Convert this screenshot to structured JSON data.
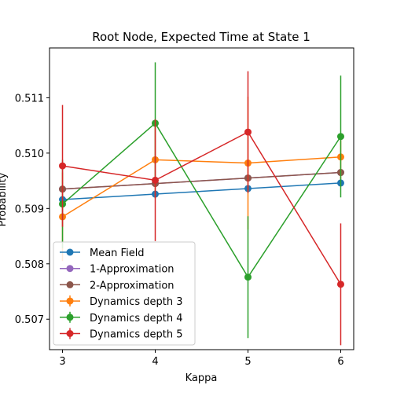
{
  "chart_data": {
    "type": "line",
    "title": "Root Node, Expected Time at State 1",
    "xlabel": "Kappa",
    "ylabel": "Probability",
    "x": [
      3,
      4,
      5,
      6
    ],
    "xlim": [
      2.86,
      6.14
    ],
    "ylim": [
      0.50645,
      0.5119
    ],
    "xticks": [
      "3",
      "4",
      "5",
      "6"
    ],
    "yticks": [
      "0.507",
      "0.508",
      "0.509",
      "0.510",
      "0.511"
    ],
    "legend_position": "lower-left",
    "series": [
      {
        "name": "Mean Field",
        "color": "#1f77b4",
        "values": [
          0.50916,
          0.50926,
          0.50936,
          0.50946
        ]
      },
      {
        "name": "1-Approximation",
        "color": "#9467bd",
        "values": [
          0.50935,
          0.50945,
          0.50955,
          0.50965
        ]
      },
      {
        "name": "2-Approximation",
        "color": "#8c564b",
        "values": [
          0.50935,
          0.50945,
          0.50955,
          0.50965
        ]
      },
      {
        "name": "Dynamics depth 3",
        "color": "#ff7f0e",
        "values": [
          0.50885,
          0.50988,
          0.50982,
          0.50993
        ],
        "errors": [
          0.0008,
          0.0007,
          0.0012,
          0.0004
        ]
      },
      {
        "name": "Dynamics depth 4",
        "color": "#2ca02c",
        "values": [
          0.50908,
          0.51054,
          0.50776,
          0.5103
        ],
        "errors": [
          0.0008,
          0.0011,
          0.0011,
          0.0011
        ]
      },
      {
        "name": "Dynamics depth 5",
        "color": "#d62728",
        "values": [
          0.50977,
          0.50951,
          0.51038,
          0.50763
        ],
        "errors": [
          0.0011,
          0.0011,
          0.0011,
          0.0011
        ]
      }
    ]
  }
}
